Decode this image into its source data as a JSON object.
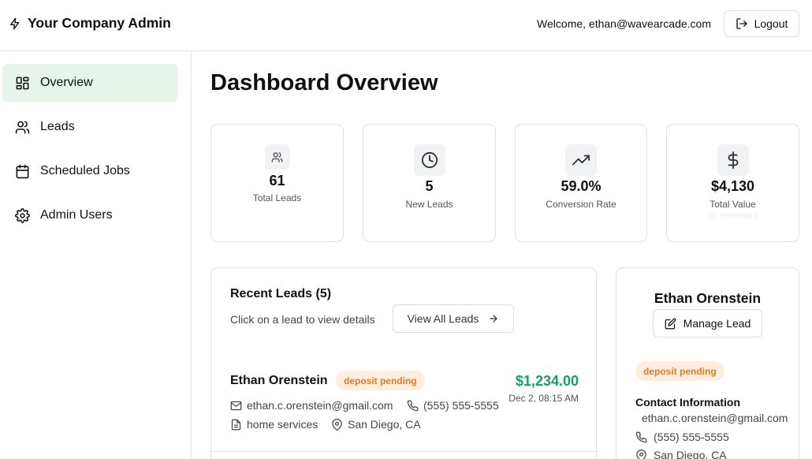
{
  "header": {
    "brand_title": "Your Company Admin",
    "brand_icon": "bolt-icon",
    "welcome_text": "Welcome, ethan@wavearcade.com",
    "logout_label": "Logout",
    "logout_icon": "logout-icon"
  },
  "sidebar": {
    "items": [
      {
        "label": "Overview",
        "icon": "dashboard-icon",
        "active": true
      },
      {
        "label": "Leads",
        "icon": "users-icon",
        "active": false
      },
      {
        "label": "Scheduled Jobs",
        "icon": "calendar-icon",
        "active": false
      },
      {
        "label": "Admin Users",
        "icon": "gear-icon",
        "active": false
      }
    ],
    "active_color": "#e6f4ea"
  },
  "main": {
    "title": "Dashboard Overview",
    "stats": [
      {
        "value": "61",
        "label": "Total Leads",
        "icon": "users-icon"
      },
      {
        "value": "5",
        "label": "New Leads",
        "icon": "clock-icon"
      },
      {
        "value": "59.0%",
        "label": "Conversion Rate",
        "icon": "trending-up-icon"
      },
      {
        "value": "$4,130",
        "label": "Total Value",
        "sub": "36 converted",
        "icon": "dollar-icon"
      }
    ],
    "recent": {
      "title": "Recent Leads (5)",
      "subtitle": "Click on a lead to view details",
      "view_all_label": "View All Leads",
      "leads": [
        {
          "name": "Ethan Orenstein",
          "status": "deposit pending",
          "amount": "$1,234.00",
          "date": "Dec 2, 08:15 AM",
          "email": "ethan.c.orenstein@gmail.com",
          "phone": "(555) 555-5555",
          "service": "home services",
          "location": "San Diego, CA"
        }
      ]
    },
    "detail": {
      "name": "Ethan Orenstein",
      "manage_label": "Manage Lead",
      "status": "deposit pending",
      "contact_title": "Contact Information",
      "email": "ethan.c.orenstein@gmail.com",
      "phone": "(555) 555-5555",
      "location": "San Diego, CA"
    }
  },
  "colors": {
    "accent_green": "#12a06a",
    "badge_bg": "#fdeee0",
    "badge_text": "#e07b1f"
  }
}
